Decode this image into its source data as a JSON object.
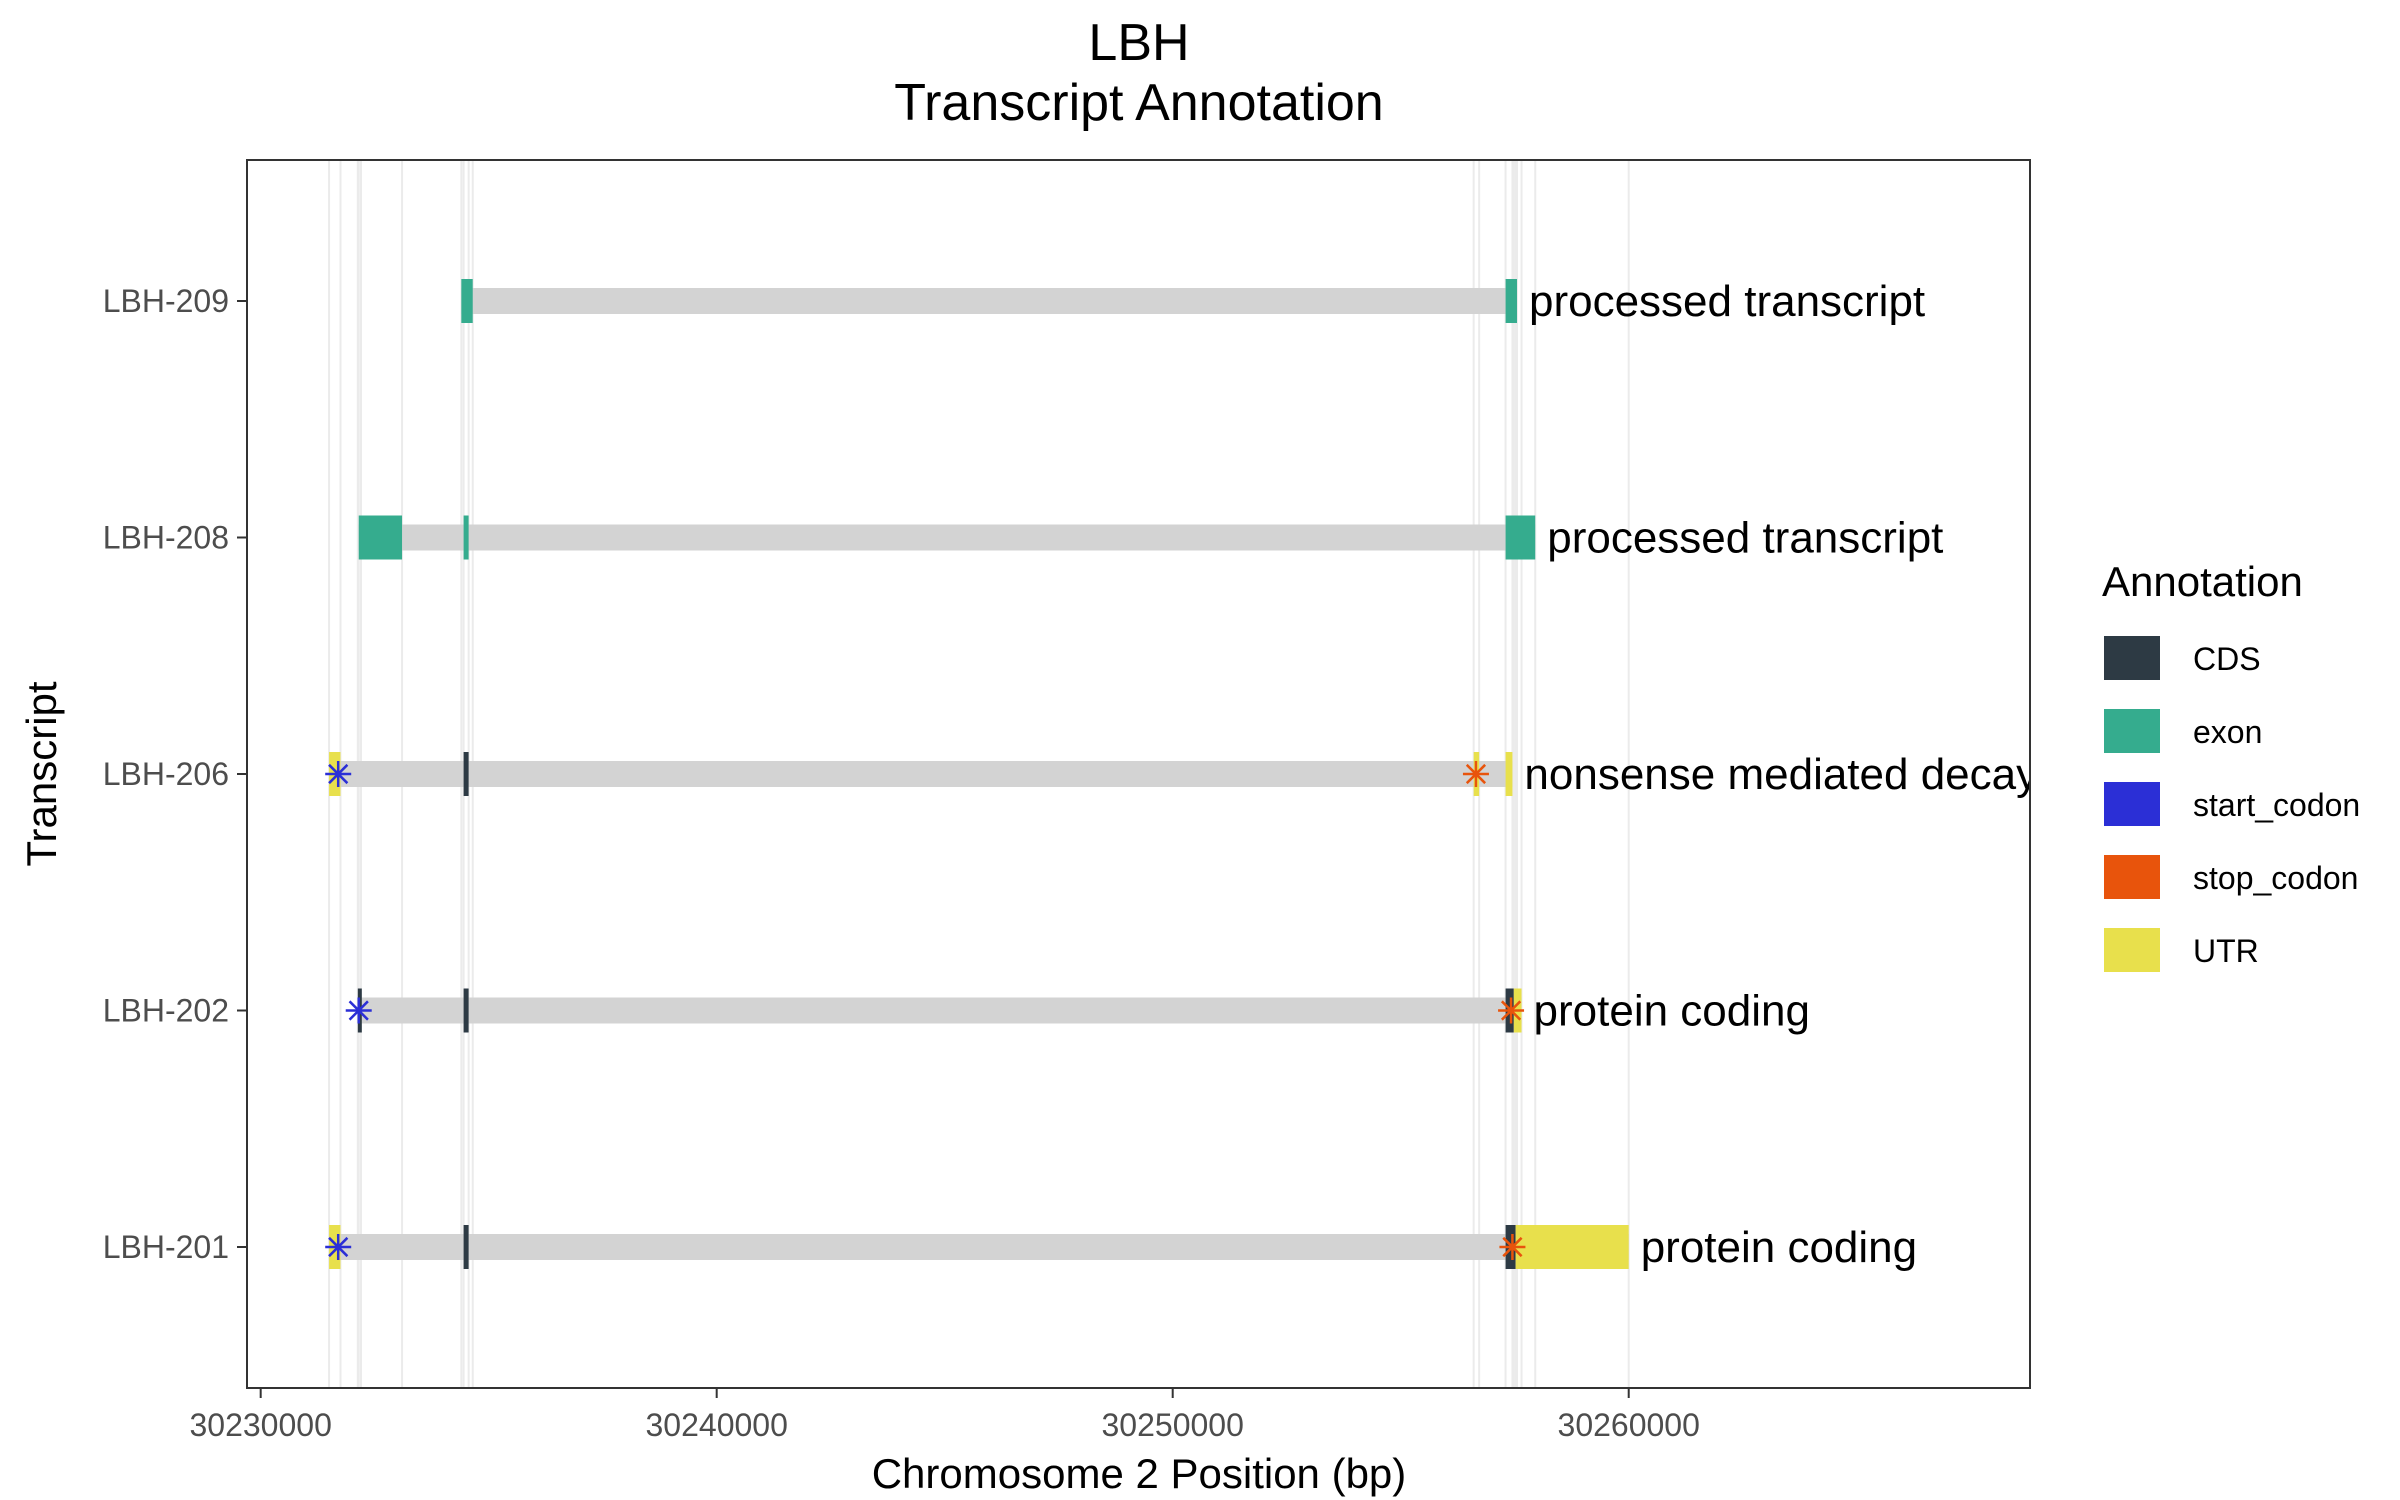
{
  "chart_data": {
    "type": "gene_track",
    "title": "LBH",
    "subtitle": "Transcript Annotation",
    "xlabel": "Chromosome 2 Position (bp)",
    "ylabel": "Transcript",
    "xlim": [
      30229700,
      30268800
    ],
    "x_ticks": [
      30230000,
      30240000,
      30250000,
      30260000
    ],
    "x_tick_labels": [
      "30230000",
      "30240000",
      "30250000",
      "30260000"
    ],
    "grid": true,
    "legend_position": "right",
    "legend": {
      "title": "Annotation",
      "entries": [
        {
          "label": "CDS",
          "color": "#2d3a44"
        },
        {
          "label": "exon",
          "color": "#35ac8e"
        },
        {
          "label": "start_codon",
          "color": "#2b2fd6"
        },
        {
          "label": "stop_codon",
          "color": "#e8540c"
        },
        {
          "label": "UTR",
          "color": "#e8e04c"
        }
      ]
    },
    "intron_color": "#d3d3d3",
    "transcripts": [
      {
        "name": "LBH-209",
        "biotype": "processed transcript",
        "start": 30234400,
        "end": 30257550,
        "features": [
          {
            "type": "exon",
            "start": 30234400,
            "end": 30234650
          },
          {
            "type": "exon",
            "start": 30257300,
            "end": 30257550
          }
        ]
      },
      {
        "name": "LBH-208",
        "biotype": "processed transcript",
        "start": 30232150,
        "end": 30257950,
        "features": [
          {
            "type": "exon",
            "start": 30232150,
            "end": 30233100
          },
          {
            "type": "exon",
            "start": 30234450,
            "end": 30234560
          },
          {
            "type": "exon",
            "start": 30257300,
            "end": 30257950
          }
        ]
      },
      {
        "name": "LBH-206",
        "biotype": "nonsense mediated decay",
        "start": 30231500,
        "end": 30257450,
        "features": [
          {
            "type": "UTR",
            "start": 30231500,
            "end": 30231750
          },
          {
            "type": "CDS",
            "start": 30234450,
            "end": 30234560
          },
          {
            "type": "UTR",
            "start": 30256600,
            "end": 30256720
          },
          {
            "type": "UTR",
            "start": 30257300,
            "end": 30257450
          }
        ],
        "start_codon": 30231700,
        "stop_codon": 30256650
      },
      {
        "name": "LBH-202",
        "biotype": "protein coding",
        "start": 30232150,
        "end": 30257650,
        "features": [
          {
            "type": "CDS",
            "start": 30232130,
            "end": 30232200
          },
          {
            "type": "CDS",
            "start": 30234450,
            "end": 30234560
          },
          {
            "type": "CDS",
            "start": 30257300,
            "end": 30257480
          },
          {
            "type": "UTR",
            "start": 30257480,
            "end": 30257650
          }
        ],
        "start_codon": 30232150,
        "stop_codon": 30257420
      },
      {
        "name": "LBH-201",
        "biotype": "protein coding",
        "start": 30231500,
        "end": 30260000,
        "features": [
          {
            "type": "UTR",
            "start": 30231500,
            "end": 30231750
          },
          {
            "type": "CDS",
            "start": 30234450,
            "end": 30234560
          },
          {
            "type": "CDS",
            "start": 30257300,
            "end": 30257520
          },
          {
            "type": "UTR",
            "start": 30257520,
            "end": 30260000
          }
        ],
        "start_codon": 30231700,
        "stop_codon": 30257450
      }
    ]
  }
}
